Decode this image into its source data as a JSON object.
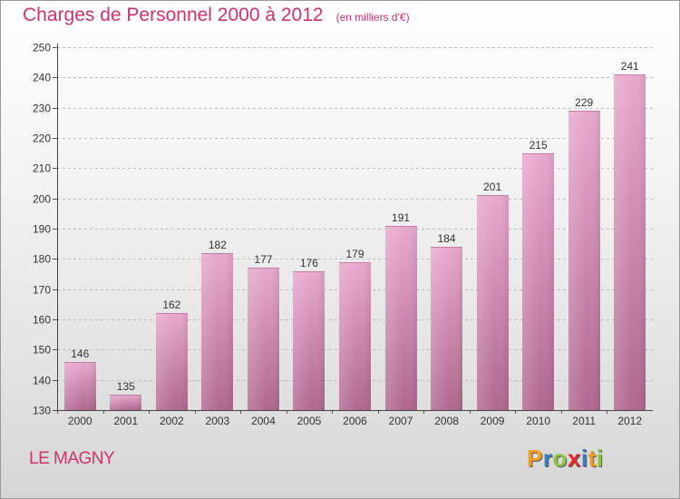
{
  "title": "Charges de Personnel 2000 à 2012",
  "subtitle": "(en milliers d'€)",
  "location": "LE MAGNY",
  "logo": {
    "text": "Proxiti",
    "letters": [
      {
        "char": "P",
        "color": "#f39c1e"
      },
      {
        "char": "r",
        "color": "#2e7fc9"
      },
      {
        "char": "o",
        "color": "#8cc63f"
      },
      {
        "char": "x",
        "color": "#e8262a"
      },
      {
        "char": "i",
        "color": "#2e7fc9"
      },
      {
        "char": "t",
        "color": "#f39c1e"
      },
      {
        "char": "i",
        "color": "#8cc63f"
      }
    ]
  },
  "colors": {
    "accent": "#d4306e",
    "bar_top": "#e8a8cd",
    "bar_bottom": "#b0678f"
  },
  "chart_data": {
    "type": "bar",
    "title": "Charges de Personnel 2000 à 2012",
    "subtitle": "(en milliers d'€)",
    "xlabel": "",
    "ylabel": "",
    "categories": [
      "2000",
      "2001",
      "2002",
      "2003",
      "2004",
      "2005",
      "2006",
      "2007",
      "2008",
      "2009",
      "2010",
      "2011",
      "2012"
    ],
    "values": [
      146,
      135,
      162,
      182,
      177,
      176,
      179,
      191,
      184,
      201,
      215,
      229,
      241
    ],
    "ylim": [
      130,
      250
    ],
    "yticks": [
      130,
      140,
      150,
      160,
      170,
      180,
      190,
      200,
      210,
      220,
      230,
      240,
      250
    ],
    "grid": true,
    "data_labels": true
  }
}
